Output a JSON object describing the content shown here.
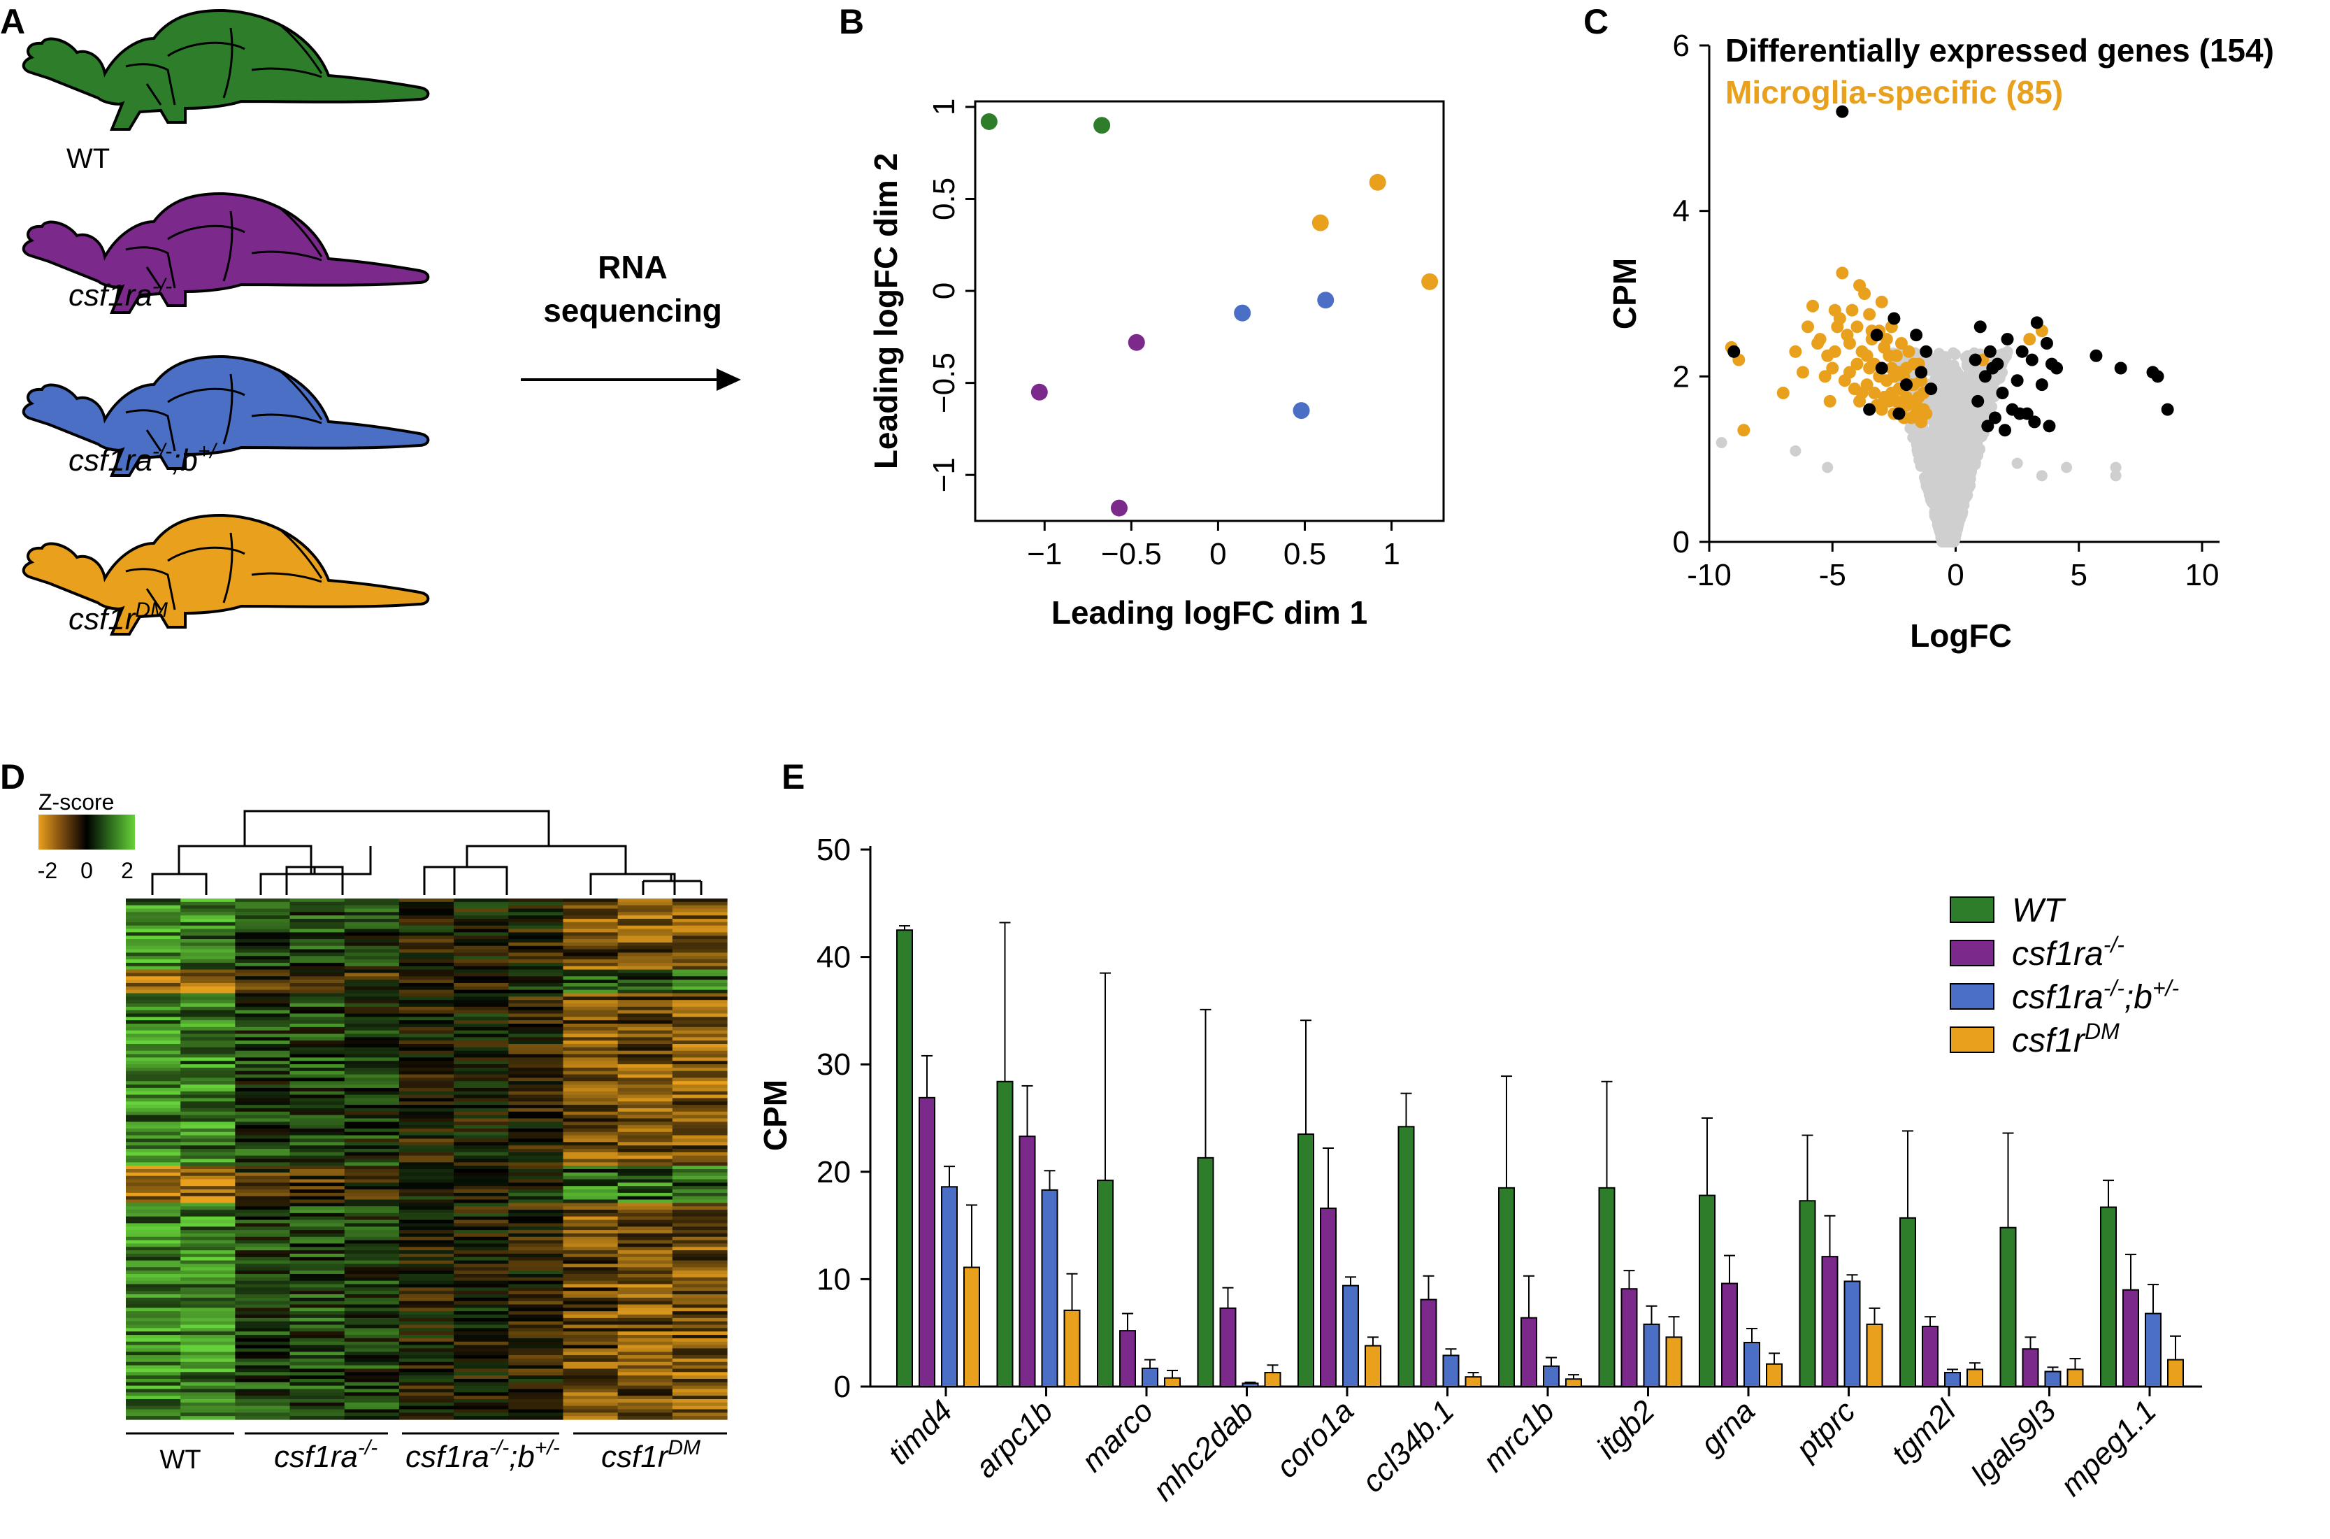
{
  "panels": {
    "a": "A",
    "b": "B",
    "c": "C",
    "d": "D",
    "e": "E"
  },
  "colors": {
    "wt": "#2e7d2a",
    "ra": "#7b2a8c",
    "rab": "#4a6fc4",
    "dm": "#e9a11d",
    "other": "#cfcfcf",
    "de": "#000000"
  },
  "panelA": {
    "genotypes": [
      {
        "base": "WT",
        "sup": ""
      },
      {
        "base": "csf1ra",
        "sup": "-/-"
      },
      {
        "base": "csf1ra",
        "sup": "-/-",
        "base2": ";b",
        "sup2": "+/-"
      },
      {
        "base": "csf1r",
        "sup": "DM"
      }
    ],
    "arrow_line1": "RNA",
    "arrow_line2": "sequencing"
  },
  "chart_data": [
    {
      "type": "scatter",
      "panel": "B",
      "xlabel": "Leading logFC dim 1",
      "ylabel": "Leading logFC dim 2",
      "xlim": [
        -1.4,
        1.3
      ],
      "ylim": [
        -1.25,
        1.03
      ],
      "xticks": [
        -1,
        -0.5,
        0,
        0.5,
        1
      ],
      "xtick_labels": [
        "−1",
        "−0.5",
        "0",
        "0.5",
        "1"
      ],
      "yticks": [
        -1,
        -0.5,
        0,
        0.5,
        1
      ],
      "ytick_labels": [
        "−1",
        "−0.5",
        "0",
        "0.5",
        "1"
      ],
      "points": [
        {
          "x": -1.32,
          "y": 0.92,
          "group": "wt"
        },
        {
          "x": -0.67,
          "y": 0.9,
          "group": "wt"
        },
        {
          "x": -1.03,
          "y": -0.55,
          "group": "ra"
        },
        {
          "x": -0.47,
          "y": -0.28,
          "group": "ra"
        },
        {
          "x": -0.57,
          "y": -1.18,
          "group": "ra"
        },
        {
          "x": 0.14,
          "y": -0.12,
          "group": "rab"
        },
        {
          "x": 0.62,
          "y": -0.05,
          "group": "rab"
        },
        {
          "x": 0.48,
          "y": -0.65,
          "group": "rab"
        },
        {
          "x": 0.59,
          "y": 0.37,
          "group": "dm"
        },
        {
          "x": 0.92,
          "y": 0.59,
          "group": "dm"
        },
        {
          "x": 1.22,
          "y": 0.05,
          "group": "dm"
        }
      ]
    },
    {
      "type": "scatter",
      "panel": "C",
      "xlabel": "LogFC",
      "ylabel": "CPM",
      "xlim": [
        -10,
        10
      ],
      "ylim": [
        0,
        6
      ],
      "xticks": [
        -10,
        -5,
        0,
        5,
        10
      ],
      "xtick_labels": [
        "-10",
        "-5",
        "0",
        "5",
        "10"
      ],
      "yticks": [
        0,
        2,
        4,
        6
      ],
      "ytick_labels": [
        "0",
        "2",
        "4",
        "6"
      ],
      "legend": [
        {
          "label": "Differentially expressed genes (154)",
          "color": "#000000"
        },
        {
          "label": "Microglia-specific (85)",
          "color": "#e9a11d"
        }
      ],
      "series": [
        {
          "name": "Microglia-specific (85)",
          "color": "#e9a11d",
          "points": [
            [
              -9.1,
              2.35
            ],
            [
              -8.8,
              2.2
            ],
            [
              -8.6,
              1.35
            ],
            [
              -7.0,
              1.8
            ],
            [
              -6.2,
              2.05
            ],
            [
              -6.0,
              2.6
            ],
            [
              -5.8,
              2.85
            ],
            [
              -5.5,
              2.45
            ],
            [
              -5.3,
              2.0
            ],
            [
              -5.1,
              1.7
            ],
            [
              -4.9,
              2.3
            ],
            [
              -4.7,
              2.7
            ],
            [
              -4.6,
              3.25
            ],
            [
              -4.4,
              2.5
            ],
            [
              -4.3,
              2.05
            ],
            [
              -4.1,
              1.85
            ],
            [
              -4.0,
              2.6
            ],
            [
              -3.9,
              3.1
            ],
            [
              -3.8,
              2.3
            ],
            [
              -3.6,
              1.9
            ],
            [
              -3.5,
              2.75
            ],
            [
              -3.4,
              2.45
            ],
            [
              -3.3,
              2.15
            ],
            [
              -3.2,
              1.65
            ],
            [
              -3.1,
              2.55
            ],
            [
              -3.0,
              2.9
            ],
            [
              -2.9,
              2.35
            ],
            [
              -2.8,
              1.95
            ],
            [
              -2.7,
              1.7
            ],
            [
              -2.6,
              2.1
            ],
            [
              -2.5,
              1.55
            ],
            [
              -2.4,
              2.25
            ],
            [
              -2.3,
              1.85
            ],
            [
              -2.2,
              1.6
            ],
            [
              -2.1,
              2.0
            ],
            [
              -2.0,
              1.75
            ],
            [
              -1.9,
              2.3
            ],
            [
              -1.8,
              1.5
            ],
            [
              -1.7,
              1.9
            ],
            [
              -1.6,
              1.65
            ],
            [
              -1.5,
              2.15
            ],
            [
              -1.4,
              1.45
            ],
            [
              -1.3,
              1.8
            ],
            [
              -1.2,
              1.55
            ],
            [
              -3.7,
              3.0
            ],
            [
              -4.8,
              2.6
            ],
            [
              -5.6,
              2.4
            ],
            [
              -2.6,
              2.6
            ],
            [
              -3.0,
              1.6
            ],
            [
              -2.2,
              2.4
            ],
            [
              1.1,
              2.2
            ],
            [
              3.0,
              2.45
            ],
            [
              3.5,
              2.55
            ],
            [
              -6.5,
              2.3
            ],
            [
              -4.2,
              2.8
            ],
            [
              -3.3,
              1.8
            ],
            [
              -2.0,
              2.1
            ],
            [
              -1.8,
              1.9
            ],
            [
              -2.4,
              1.7
            ],
            [
              -2.8,
              2.45
            ],
            [
              -3.5,
              2.1
            ],
            [
              -4.5,
              1.95
            ],
            [
              -5.2,
              2.25
            ],
            [
              -3.9,
              1.7
            ],
            [
              -2.5,
              2.0
            ],
            [
              -1.6,
              1.55
            ],
            [
              -1.4,
              1.95
            ],
            [
              -2.9,
              1.75
            ],
            [
              -3.6,
              2.25
            ],
            [
              -4.0,
              2.15
            ],
            [
              -2.1,
              1.5
            ],
            [
              -1.9,
              1.7
            ],
            [
              -2.3,
              2.05
            ],
            [
              -3.1,
              2.0
            ],
            [
              -2.7,
              2.25
            ],
            [
              -1.7,
              2.15
            ],
            [
              -1.5,
              1.75
            ],
            [
              -3.4,
              2.55
            ],
            [
              -4.3,
              2.4
            ],
            [
              -5.0,
              2.1
            ],
            [
              -2.6,
              1.8
            ],
            [
              -2.0,
              1.65
            ],
            [
              -3.8,
              1.8
            ],
            [
              -1.3,
              1.6
            ],
            [
              -4.9,
              2.8
            ]
          ]
        },
        {
          "name": "Differentially expressed genes (154)",
          "color": "#000000",
          "points": [
            [
              -9.0,
              2.3
            ],
            [
              -4.6,
              5.2
            ],
            [
              -3.5,
              1.6
            ],
            [
              -3.0,
              2.1
            ],
            [
              -2.5,
              2.7
            ],
            [
              -2.0,
              1.9
            ],
            [
              -1.6,
              2.5
            ],
            [
              -1.2,
              2.3
            ],
            [
              -1.0,
              1.85
            ],
            [
              -2.3,
              1.55
            ],
            [
              -3.2,
              2.5
            ],
            [
              -1.4,
              2.05
            ],
            [
              0.9,
              1.7
            ],
            [
              1.0,
              2.6
            ],
            [
              1.2,
              2.0
            ],
            [
              1.4,
              2.3
            ],
            [
              1.6,
              1.5
            ],
            [
              1.7,
              2.15
            ],
            [
              1.9,
              1.8
            ],
            [
              2.1,
              2.45
            ],
            [
              2.3,
              1.6
            ],
            [
              2.5,
              1.95
            ],
            [
              2.7,
              2.3
            ],
            [
              2.9,
              1.55
            ],
            [
              3.1,
              2.2
            ],
            [
              3.3,
              2.65
            ],
            [
              3.5,
              1.9
            ],
            [
              3.7,
              2.4
            ],
            [
              3.9,
              2.15
            ],
            [
              4.1,
              2.1
            ],
            [
              5.7,
              2.25
            ],
            [
              6.7,
              2.1
            ],
            [
              8.0,
              2.05
            ],
            [
              8.2,
              2.0
            ],
            [
              8.6,
              1.6
            ],
            [
              1.3,
              1.4
            ],
            [
              2.0,
              1.35
            ],
            [
              2.6,
              1.55
            ],
            [
              3.2,
              1.45
            ],
            [
              3.8,
              1.4
            ],
            [
              0.8,
              2.2
            ],
            [
              1.5,
              2.1
            ]
          ]
        }
      ]
    },
    {
      "type": "bar",
      "panel": "E",
      "ylabel": "CPM",
      "ylim": [
        0,
        50
      ],
      "yticks": [
        0,
        10,
        20,
        30,
        40,
        50
      ],
      "categories": [
        "timd4",
        "arpc1b",
        "marco",
        "mhc2dab",
        "coro1a",
        "ccl34b.1",
        "mrc1b",
        "itgb2",
        "grna",
        "ptprc",
        "tgm2l",
        "lgals9l3",
        "mpeg1.1"
      ],
      "legend": [
        {
          "base": "WT",
          "sup": ""
        },
        {
          "base": "csf1ra",
          "sup": "-/-"
        },
        {
          "base": "csf1ra",
          "sup": "-/-",
          "base2": ";b",
          "sup2": "+/-"
        },
        {
          "base": "csf1r",
          "sup": "DM"
        }
      ],
      "series": [
        {
          "name": "WT",
          "color": "#2e7d2a",
          "values": [
            42.5,
            28.4,
            19.2,
            21.3,
            23.5,
            24.2,
            18.5,
            18.5,
            17.8,
            17.3,
            15.7,
            14.8,
            16.7
          ],
          "errors": [
            0.4,
            14.8,
            19.3,
            13.8,
            10.6,
            3.1,
            10.4,
            9.9,
            7.2,
            6.1,
            8.1,
            8.8,
            2.5
          ]
        },
        {
          "name": "csf1ra-/-",
          "color": "#7b2a8c",
          "values": [
            26.9,
            23.3,
            5.2,
            7.3,
            16.6,
            8.1,
            6.4,
            9.1,
            9.6,
            12.1,
            5.6,
            3.5,
            9.0
          ],
          "errors": [
            3.9,
            4.7,
            1.6,
            1.9,
            5.6,
            2.2,
            3.9,
            1.7,
            2.6,
            3.8,
            0.9,
            1.1,
            3.3
          ]
        },
        {
          "name": "csf1ra-/-;b+/-",
          "color": "#4a6fc4",
          "values": [
            18.6,
            18.3,
            1.7,
            0.3,
            9.4,
            2.9,
            1.9,
            5.8,
            4.1,
            9.8,
            1.3,
            1.4,
            6.8
          ],
          "errors": [
            1.9,
            1.8,
            0.8,
            0.1,
            0.8,
            0.6,
            0.8,
            1.7,
            1.3,
            0.6,
            0.3,
            0.4,
            2.7
          ]
        },
        {
          "name": "csf1rDM",
          "color": "#e9a11d",
          "values": [
            11.1,
            7.1,
            0.8,
            1.3,
            3.8,
            0.9,
            0.7,
            4.6,
            2.1,
            5.8,
            1.6,
            1.6,
            2.5
          ],
          "errors": [
            5.8,
            3.4,
            0.7,
            0.7,
            0.8,
            0.4,
            0.4,
            1.9,
            1.0,
            1.5,
            0.6,
            1.0,
            2.2
          ]
        }
      ]
    },
    {
      "type": "heatmap",
      "panel": "D",
      "colorbar_title": "Z-score",
      "colorbar_ticks": [
        "-2",
        "0",
        "2"
      ],
      "colorbar_range": [
        -2.5,
        2.5
      ],
      "columns": 11,
      "rows": 154,
      "groups": [
        {
          "base": "WT",
          "sup": "",
          "columns": 2
        },
        {
          "base": "csf1ra",
          "sup": "-/-",
          "columns": 3
        },
        {
          "base": "csf1ra",
          "sup": "-/-",
          "base2": ";b",
          "sup2": "+/-",
          "columns": 3
        },
        {
          "base": "csf1r",
          "sup": "DM",
          "columns": 3
        }
      ]
    }
  ]
}
